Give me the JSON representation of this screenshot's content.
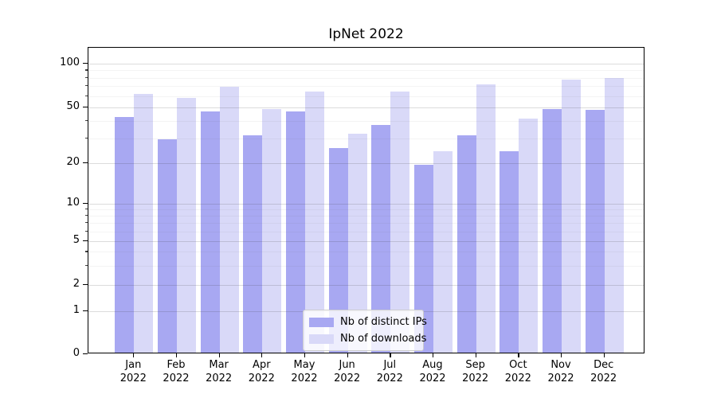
{
  "title": "IpNet 2022",
  "chart_data": {
    "type": "bar",
    "title": "IpNet 2022",
    "categories": [
      "Jan 2022",
      "Feb 2022",
      "Mar 2022",
      "Apr 2022",
      "May 2022",
      "Jun 2022",
      "Jul 2022",
      "Aug 2022",
      "Sep 2022",
      "Oct 2022",
      "Nov 2022",
      "Dec 2022"
    ],
    "x_tick_month": [
      "Jan",
      "Feb",
      "Mar",
      "Apr",
      "May",
      "Jun",
      "Jul",
      "Aug",
      "Sep",
      "Oct",
      "Nov",
      "Dec"
    ],
    "x_tick_year": "2022",
    "series": [
      {
        "name": "Nb of distinct IPs",
        "color": "#a8a8f2",
        "values": [
          42,
          29,
          46,
          31,
          46,
          25,
          37,
          19,
          31,
          24,
          48,
          47
        ]
      },
      {
        "name": "Nb of downloads",
        "color": "#d9d9f8",
        "values": [
          61,
          57,
          68,
          48,
          63,
          32,
          63,
          24,
          71,
          41,
          76,
          78
        ]
      }
    ],
    "xlabel": "",
    "ylabel": "",
    "yscale": "log above 1, linear 0-1 (symlog-style)",
    "ytick_labels": [
      0,
      1,
      2,
      5,
      10,
      20,
      50,
      100
    ],
    "minor_gridline_values": [
      3,
      4,
      6,
      7,
      8,
      9,
      30,
      40,
      60,
      70,
      80,
      90
    ],
    "ylim": [
      0,
      128
    ],
    "grid": "horizontal major + minor, drawn over bars",
    "legend_position": "lower center"
  },
  "legend": {
    "items": [
      {
        "label": "Nb of distinct IPs",
        "color": "#a8a8f2"
      },
      {
        "label": "Nb of downloads",
        "color": "#d9d9f8"
      }
    ]
  },
  "colors": {
    "background": "#ffffff",
    "axis": "#000000",
    "major_grid": "#d6d6d6",
    "minor_grid": "#efefef",
    "series1": "#a8a8f2",
    "series2": "#d9d9f8"
  }
}
